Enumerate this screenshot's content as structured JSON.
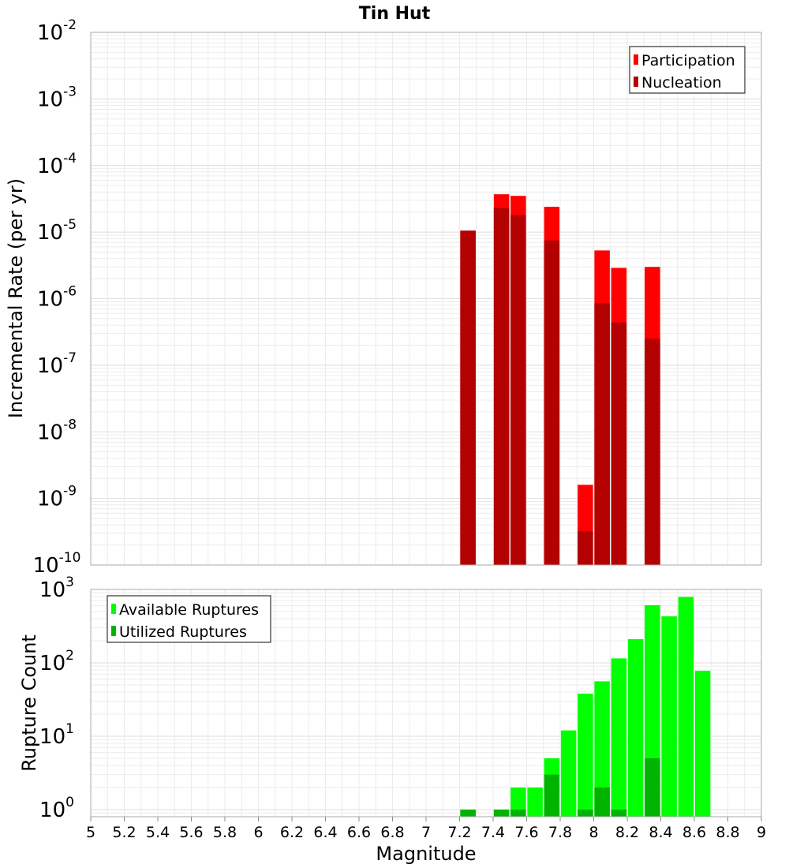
{
  "title": "Tin Hut",
  "chart_data": [
    {
      "type": "bar",
      "name_panel": "rates",
      "ylabel": "Incremental Rate (per yr)",
      "yscale": "log",
      "ylim": [
        1e-10,
        0.01
      ],
      "xlim": [
        5,
        9
      ],
      "grid": true,
      "legend_position": "top-right",
      "y_tick_labels": [
        {
          "base": "10",
          "exp": "-10"
        },
        {
          "base": "10",
          "exp": "-9"
        },
        {
          "base": "10",
          "exp": "-8"
        },
        {
          "base": "10",
          "exp": "-7"
        },
        {
          "base": "10",
          "exp": "-6"
        },
        {
          "base": "10",
          "exp": "-5"
        },
        {
          "base": "10",
          "exp": "-4"
        },
        {
          "base": "10",
          "exp": "-3"
        },
        {
          "base": "10",
          "exp": "-2"
        }
      ],
      "series": [
        {
          "name": "Participation",
          "color": "#ff0000",
          "points": [
            {
              "x": 7.25,
              "y": 1.05e-05
            },
            {
              "x": 7.45,
              "y": 3.7e-05
            },
            {
              "x": 7.55,
              "y": 3.5e-05
            },
            {
              "x": 7.75,
              "y": 2.4e-05
            },
            {
              "x": 7.95,
              "y": 1.6e-09
            },
            {
              "x": 8.05,
              "y": 5.3e-06
            },
            {
              "x": 8.15,
              "y": 2.9e-06
            },
            {
              "x": 8.35,
              "y": 3e-06
            }
          ]
        },
        {
          "name": "Nucleation",
          "color": "#b30000",
          "points": [
            {
              "x": 7.25,
              "y": 1.05e-05
            },
            {
              "x": 7.45,
              "y": 2.3e-05
            },
            {
              "x": 7.55,
              "y": 1.8e-05
            },
            {
              "x": 7.75,
              "y": 7.5e-06
            },
            {
              "x": 7.95,
              "y": 3.2e-10
            },
            {
              "x": 8.05,
              "y": 8.5e-07
            },
            {
              "x": 8.15,
              "y": 4.4e-07
            },
            {
              "x": 8.35,
              "y": 2.5e-07
            }
          ]
        }
      ]
    },
    {
      "type": "bar",
      "name_panel": "counts",
      "ylabel": "Rupture Count",
      "xlabel": "Magnitude",
      "yscale": "log",
      "ylim": [
        0.8,
        1000
      ],
      "xlim": [
        5,
        9
      ],
      "grid": true,
      "legend_position": "top-left",
      "y_tick_labels": [
        {
          "base": "10",
          "exp": "0",
          "value": 1
        },
        {
          "base": "10",
          "exp": "1",
          "value": 10
        },
        {
          "base": "10",
          "exp": "2",
          "value": 100
        },
        {
          "base": "10",
          "exp": "3",
          "value": 1000
        }
      ],
      "x_tick_labels": [
        "5",
        "5.2",
        "5.4",
        "5.6",
        "5.8",
        "6",
        "6.2",
        "6.4",
        "6.6",
        "6.8",
        "7",
        "7.2",
        "7.4",
        "7.6",
        "7.8",
        "8",
        "8.2",
        "8.4",
        "8.6",
        "8.8",
        "9"
      ],
      "series": [
        {
          "name": "Available Ruptures",
          "color": "#00ff00",
          "points": [
            {
              "x": 7.25,
              "y": 1
            },
            {
              "x": 7.45,
              "y": 1
            },
            {
              "x": 7.55,
              "y": 2
            },
            {
              "x": 7.65,
              "y": 2
            },
            {
              "x": 7.75,
              "y": 5
            },
            {
              "x": 7.85,
              "y": 12
            },
            {
              "x": 7.95,
              "y": 38
            },
            {
              "x": 8.05,
              "y": 56
            },
            {
              "x": 8.15,
              "y": 115
            },
            {
              "x": 8.25,
              "y": 210
            },
            {
              "x": 8.35,
              "y": 610
            },
            {
              "x": 8.45,
              "y": 430
            },
            {
              "x": 8.55,
              "y": 790
            },
            {
              "x": 8.65,
              "y": 78
            }
          ]
        },
        {
          "name": "Utilized Ruptures",
          "color": "#00b300",
          "points": [
            {
              "x": 7.25,
              "y": 1
            },
            {
              "x": 7.45,
              "y": 1
            },
            {
              "x": 7.55,
              "y": 1
            },
            {
              "x": 7.75,
              "y": 3
            },
            {
              "x": 7.95,
              "y": 1
            },
            {
              "x": 8.05,
              "y": 2
            },
            {
              "x": 8.15,
              "y": 1
            },
            {
              "x": 8.35,
              "y": 5
            }
          ]
        }
      ]
    }
  ]
}
